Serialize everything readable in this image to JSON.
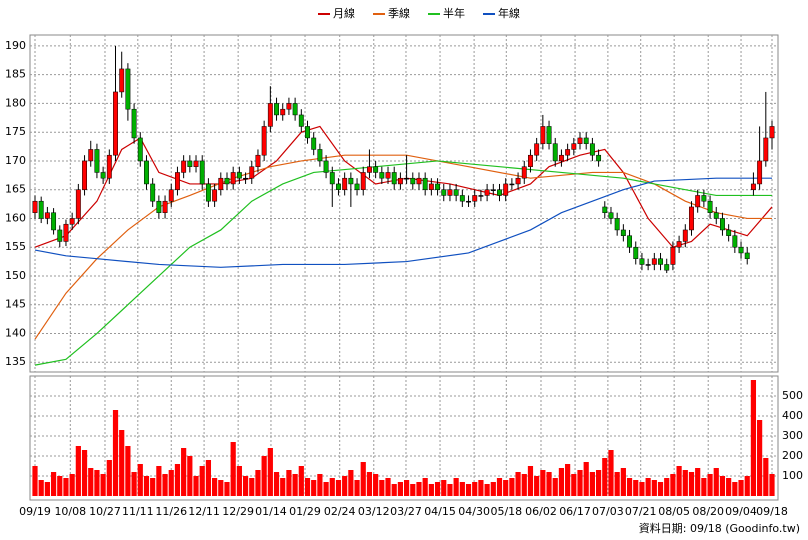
{
  "chart_data": [
    {
      "type": "candlestick",
      "legend": "top",
      "grid": true,
      "up_color": "#ff0000",
      "down_color": "#00b000",
      "xlim": [
        0,
        119
      ],
      "xticks": [
        {
          "value": 0,
          "label": "09/19"
        },
        {
          "value": 5.7,
          "label": "10/08"
        },
        {
          "value": 11.3,
          "label": "10/27"
        },
        {
          "value": 16.6,
          "label": "11/11"
        },
        {
          "value": 22.0,
          "label": "11/26"
        },
        {
          "value": 27.3,
          "label": "12/11"
        },
        {
          "value": 32.8,
          "label": "12/29"
        },
        {
          "value": 38.1,
          "label": "01/14"
        },
        {
          "value": 43.6,
          "label": "01/29"
        },
        {
          "value": 49.2,
          "label": "02/24"
        },
        {
          "value": 54.7,
          "label": "03/12"
        },
        {
          "value": 59.9,
          "label": "03/27"
        },
        {
          "value": 65.4,
          "label": "04/15"
        },
        {
          "value": 70.9,
          "label": "04/30"
        },
        {
          "value": 76.1,
          "label": "05/18"
        },
        {
          "value": 81.7,
          "label": "06/02"
        },
        {
          "value": 87.2,
          "label": "06/17"
        },
        {
          "value": 92.5,
          "label": "07/03"
        },
        {
          "value": 97.8,
          "label": "07/21"
        },
        {
          "value": 103.2,
          "label": "08/05"
        },
        {
          "value": 108.7,
          "label": "08/20"
        },
        {
          "value": 114.0,
          "label": "09/04"
        },
        {
          "value": 119,
          "label": "09/18"
        }
      ],
      "ylim": [
        133.3,
        191.9
      ],
      "yticks": [
        135,
        140,
        145,
        150,
        155,
        160,
        165,
        170,
        175,
        180,
        185,
        190
      ],
      "ohlc": [
        [
          161,
          164,
          160,
          163
        ],
        [
          163,
          163.8,
          159.2,
          160
        ],
        [
          160,
          162,
          159,
          161
        ],
        [
          161,
          161.8,
          157.2,
          158
        ],
        [
          158,
          158.8,
          155,
          156
        ],
        [
          156,
          159.8,
          155.2,
          159
        ],
        [
          159,
          161,
          158,
          160
        ],
        [
          160,
          166,
          159,
          165
        ],
        [
          165,
          171,
          164,
          170
        ],
        [
          170,
          173.5,
          169,
          172
        ],
        [
          172,
          173,
          167,
          168
        ],
        [
          168,
          169,
          166,
          167
        ],
        [
          167,
          172,
          166,
          171
        ],
        [
          171,
          190,
          170,
          182
        ],
        [
          182,
          189,
          181,
          186
        ],
        [
          186,
          187,
          177,
          179
        ],
        [
          179,
          180,
          173,
          174
        ],
        [
          174,
          175,
          169,
          170
        ],
        [
          170,
          171,
          165,
          166
        ],
        [
          166,
          167,
          162,
          163
        ],
        [
          163,
          164,
          160,
          161
        ],
        [
          161,
          164,
          160,
          163
        ],
        [
          163,
          166,
          162,
          165
        ],
        [
          165,
          169,
          164,
          168
        ],
        [
          168,
          171,
          167,
          170
        ],
        [
          170,
          171,
          168,
          169
        ],
        [
          169,
          171,
          168,
          170
        ],
        [
          170,
          171,
          165,
          166
        ],
        [
          166,
          167,
          162,
          163
        ],
        [
          163,
          166,
          162,
          165
        ],
        [
          165,
          168,
          164,
          167
        ],
        [
          167,
          168,
          165,
          166
        ],
        [
          166,
          169,
          165,
          168
        ],
        [
          168,
          169,
          166,
          167
        ],
        [
          167,
          168,
          166,
          167
        ],
        [
          167,
          170,
          166,
          169
        ],
        [
          169,
          172,
          168,
          171
        ],
        [
          171,
          177,
          170,
          176
        ],
        [
          176,
          183,
          175,
          180
        ],
        [
          180,
          181,
          177,
          178
        ],
        [
          178,
          180,
          177,
          179
        ],
        [
          179,
          181,
          178,
          180
        ],
        [
          180,
          181,
          177,
          178
        ],
        [
          178,
          179,
          175,
          176
        ],
        [
          176,
          177,
          173,
          174
        ],
        [
          174,
          175,
          171,
          172
        ],
        [
          172,
          173,
          169,
          170
        ],
        [
          170,
          171,
          167,
          168
        ],
        [
          168,
          169,
          162,
          166
        ],
        [
          166,
          167,
          164,
          165
        ],
        [
          165,
          168,
          164,
          167
        ],
        [
          167,
          168,
          162,
          166
        ],
        [
          166,
          167,
          164,
          165
        ],
        [
          165,
          169,
          164,
          168
        ],
        [
          168,
          172,
          167,
          169
        ],
        [
          169,
          170,
          167,
          168
        ],
        [
          168,
          169,
          166,
          167
        ],
        [
          167,
          169,
          166,
          168
        ],
        [
          168,
          169,
          165,
          166
        ],
        [
          166,
          168,
          165,
          167
        ],
        [
          167,
          171,
          166,
          167
        ],
        [
          167,
          168,
          165,
          166
        ],
        [
          166,
          168,
          165,
          167
        ],
        [
          167,
          168,
          164,
          165
        ],
        [
          165,
          167,
          164,
          166
        ],
        [
          166,
          167,
          164,
          165
        ],
        [
          165,
          166,
          163,
          164
        ],
        [
          164,
          166,
          163,
          165
        ],
        [
          165,
          166,
          163,
          164
        ],
        [
          164,
          165,
          162,
          163
        ],
        [
          163,
          164,
          162,
          163
        ],
        [
          163,
          165,
          162,
          164
        ],
        [
          164,
          165,
          163,
          164
        ],
        [
          164,
          166,
          163,
          165
        ],
        [
          165,
          166,
          164,
          165
        ],
        [
          165,
          166,
          163,
          164
        ],
        [
          164,
          167,
          163,
          166
        ],
        [
          166,
          167,
          165,
          166
        ],
        [
          166,
          168,
          165,
          167
        ],
        [
          167,
          170,
          166,
          169
        ],
        [
          169,
          172,
          168,
          171
        ],
        [
          171,
          174,
          170,
          173
        ],
        [
          173,
          178,
          172,
          176
        ],
        [
          176,
          177,
          172,
          173
        ],
        [
          173,
          174,
          169,
          170
        ],
        [
          170,
          172,
          169,
          171
        ],
        [
          171,
          173,
          170,
          172
        ],
        [
          172,
          174,
          171,
          173
        ],
        [
          173,
          175,
          172,
          174
        ],
        [
          174,
          175,
          172,
          173
        ],
        [
          173,
          174,
          170,
          171
        ],
        [
          171,
          172,
          169,
          170
        ],
        [
          162,
          163,
          160,
          161
        ],
        [
          161,
          162,
          159,
          160
        ],
        [
          160,
          161,
          157,
          158
        ],
        [
          158,
          159,
          156,
          157
        ],
        [
          157,
          158,
          154,
          155
        ],
        [
          155,
          156,
          152,
          153
        ],
        [
          153,
          154,
          151,
          152
        ],
        [
          152,
          153,
          151,
          152
        ],
        [
          152,
          154,
          151,
          153
        ],
        [
          153,
          154,
          151,
          152
        ],
        [
          152,
          153,
          150.5,
          151
        ],
        [
          152,
          156,
          151,
          155
        ],
        [
          155,
          157,
          154,
          156
        ],
        [
          156,
          159,
          155,
          158
        ],
        [
          158,
          163,
          157,
          162
        ],
        [
          162,
          165,
          161,
          164
        ],
        [
          164,
          165,
          162,
          163
        ],
        [
          163,
          164,
          160,
          161
        ],
        [
          161,
          162,
          159,
          160
        ],
        [
          160,
          161,
          157,
          158
        ],
        [
          158,
          159,
          156,
          157
        ],
        [
          157,
          158,
          154,
          155
        ],
        [
          155,
          156,
          153,
          154
        ],
        [
          154,
          155,
          152,
          153
        ],
        [
          165,
          168,
          164,
          166
        ],
        [
          166,
          176,
          165,
          170
        ],
        [
          170,
          182,
          169,
          174
        ],
        [
          174,
          177,
          172,
          176
        ]
      ],
      "series": [
        {
          "name": "月線",
          "color": "#cc0000",
          "x": [
            0,
            5,
            10,
            14,
            17,
            20,
            25,
            30,
            35,
            39,
            43,
            46,
            50,
            55,
            60,
            67,
            75,
            80,
            83,
            88,
            92,
            95,
            99,
            103,
            106,
            109,
            112,
            115,
            119
          ],
          "values": [
            155,
            157,
            163,
            172,
            174,
            168,
            166,
            166,
            167,
            170,
            175,
            176,
            170,
            166,
            167,
            166,
            164,
            166,
            169,
            171,
            172,
            168,
            160,
            155,
            156,
            159,
            158,
            157,
            162
          ]
        },
        {
          "name": "季線",
          "color": "#e06010",
          "x": [
            0,
            5,
            10,
            15,
            20,
            25,
            32,
            38,
            43,
            50,
            60,
            70,
            80,
            90,
            95,
            100,
            105,
            110,
            115,
            119
          ],
          "values": [
            139,
            147,
            153,
            158,
            162,
            164,
            167,
            169,
            170,
            171,
            171,
            169,
            167,
            168,
            168,
            166,
            163,
            161,
            160,
            160
          ]
        },
        {
          "name": "半年",
          "color": "#20c020",
          "x": [
            0,
            5,
            10,
            15,
            20,
            25,
            30,
            35,
            40,
            45,
            55,
            65,
            75,
            85,
            95,
            100,
            105,
            110,
            115,
            119
          ],
          "values": [
            134.5,
            135.5,
            140,
            145,
            150,
            155,
            158,
            163,
            166,
            168,
            169,
            170,
            169,
            168,
            167,
            166,
            165,
            164,
            164,
            164
          ]
        },
        {
          "name": "年線",
          "color": "#1050c0",
          "x": [
            0,
            5,
            10,
            20,
            30,
            40,
            50,
            60,
            70,
            75,
            80,
            85,
            90,
            95,
            100,
            110,
            119
          ],
          "values": [
            154.5,
            153.5,
            153,
            152,
            151.5,
            152,
            152,
            152.5,
            154,
            156,
            158,
            161,
            163,
            165,
            166.5,
            167,
            167
          ]
        }
      ]
    },
    {
      "type": "bar",
      "color": "#ff0000",
      "xlim": [
        0,
        119
      ],
      "ylim": [
        0,
        600
      ],
      "yticks": [
        100,
        200,
        300,
        400,
        500
      ],
      "values": [
        150,
        80,
        70,
        120,
        100,
        90,
        110,
        250,
        230,
        140,
        130,
        110,
        180,
        430,
        330,
        250,
        120,
        160,
        100,
        90,
        150,
        110,
        130,
        160,
        240,
        200,
        100,
        150,
        180,
        90,
        80,
        70,
        270,
        150,
        100,
        90,
        130,
        200,
        240,
        120,
        90,
        130,
        110,
        150,
        90,
        80,
        110,
        70,
        90,
        80,
        100,
        130,
        80,
        170,
        120,
        110,
        80,
        90,
        60,
        70,
        80,
        60,
        70,
        90,
        60,
        70,
        80,
        60,
        90,
        70,
        60,
        70,
        80,
        60,
        70,
        90,
        80,
        90,
        120,
        110,
        150,
        100,
        130,
        120,
        90,
        140,
        160,
        110,
        130,
        170,
        120,
        130,
        190,
        230,
        120,
        140,
        90,
        80,
        70,
        90,
        80,
        70,
        90,
        110,
        150,
        130,
        120,
        140,
        90,
        110,
        140,
        100,
        90,
        70,
        80,
        100,
        580,
        380,
        190,
        110
      ]
    }
  ],
  "footer": "資料日期: 09/18 (Goodinfo.tw)"
}
